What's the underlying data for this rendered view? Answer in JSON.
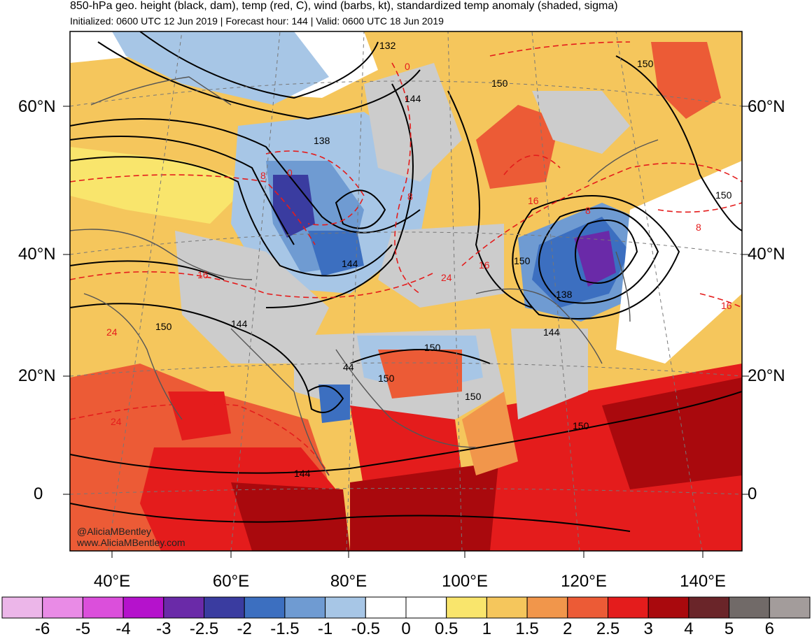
{
  "header": {
    "title": "850-hPa geo. height (black, dam), temp (red, C), wind (barbs, kt), standardized temp anomaly (shaded, sigma)",
    "subtitle": "Initialized: 0600 UTC 12 Jun 2019 | Forecast hour: 144 | Valid: 0600 UTC 18 Jun 2019"
  },
  "map": {
    "lat_labels": [
      "60°N",
      "40°N",
      "20°N",
      "0"
    ],
    "lon_labels": [
      "40°E",
      "60°E",
      "80°E",
      "100°E",
      "120°E",
      "140°E"
    ],
    "height_contour_labels": [
      "132",
      "144",
      "138",
      "144",
      "150",
      "150",
      "150",
      "150",
      "144",
      "150",
      "150",
      "144",
      "138",
      "144",
      "44",
      "150",
      "150",
      "150"
    ],
    "temp_contour_labels": [
      "0",
      "8",
      "0",
      "8",
      "16",
      "16",
      "24",
      "16",
      "24",
      "8",
      "8",
      "16",
      "24"
    ],
    "credits": [
      "@AliciaMBentley",
      "www.AliciaMBentley.com"
    ]
  },
  "colorbar": {
    "labels": [
      "-6",
      "-5",
      "-4",
      "-3",
      "-2.5",
      "-2",
      "-1.5",
      "-1",
      "-0.5",
      "0",
      "0.5",
      "1",
      "1.5",
      "2",
      "2.5",
      "3",
      "4",
      "5",
      "6"
    ],
    "colors": [
      "#ecb6e9",
      "#e98be6",
      "#db4fdb",
      "#b512cc",
      "#6a2aa8",
      "#3a3ca0",
      "#3c6fc0",
      "#6f9bd2",
      "#a7c6e6",
      "#ffffff",
      "#ffffff",
      "#f9e56c",
      "#f5c65c",
      "#f1964b",
      "#ec5b36",
      "#e41c1c",
      "#a9090d",
      "#6a2529",
      "#716a68",
      "#a39c9b"
    ]
  },
  "colors": {
    "height_contour": "#000000",
    "temp_contour": "#e41c1c",
    "coastline": "#555555"
  }
}
